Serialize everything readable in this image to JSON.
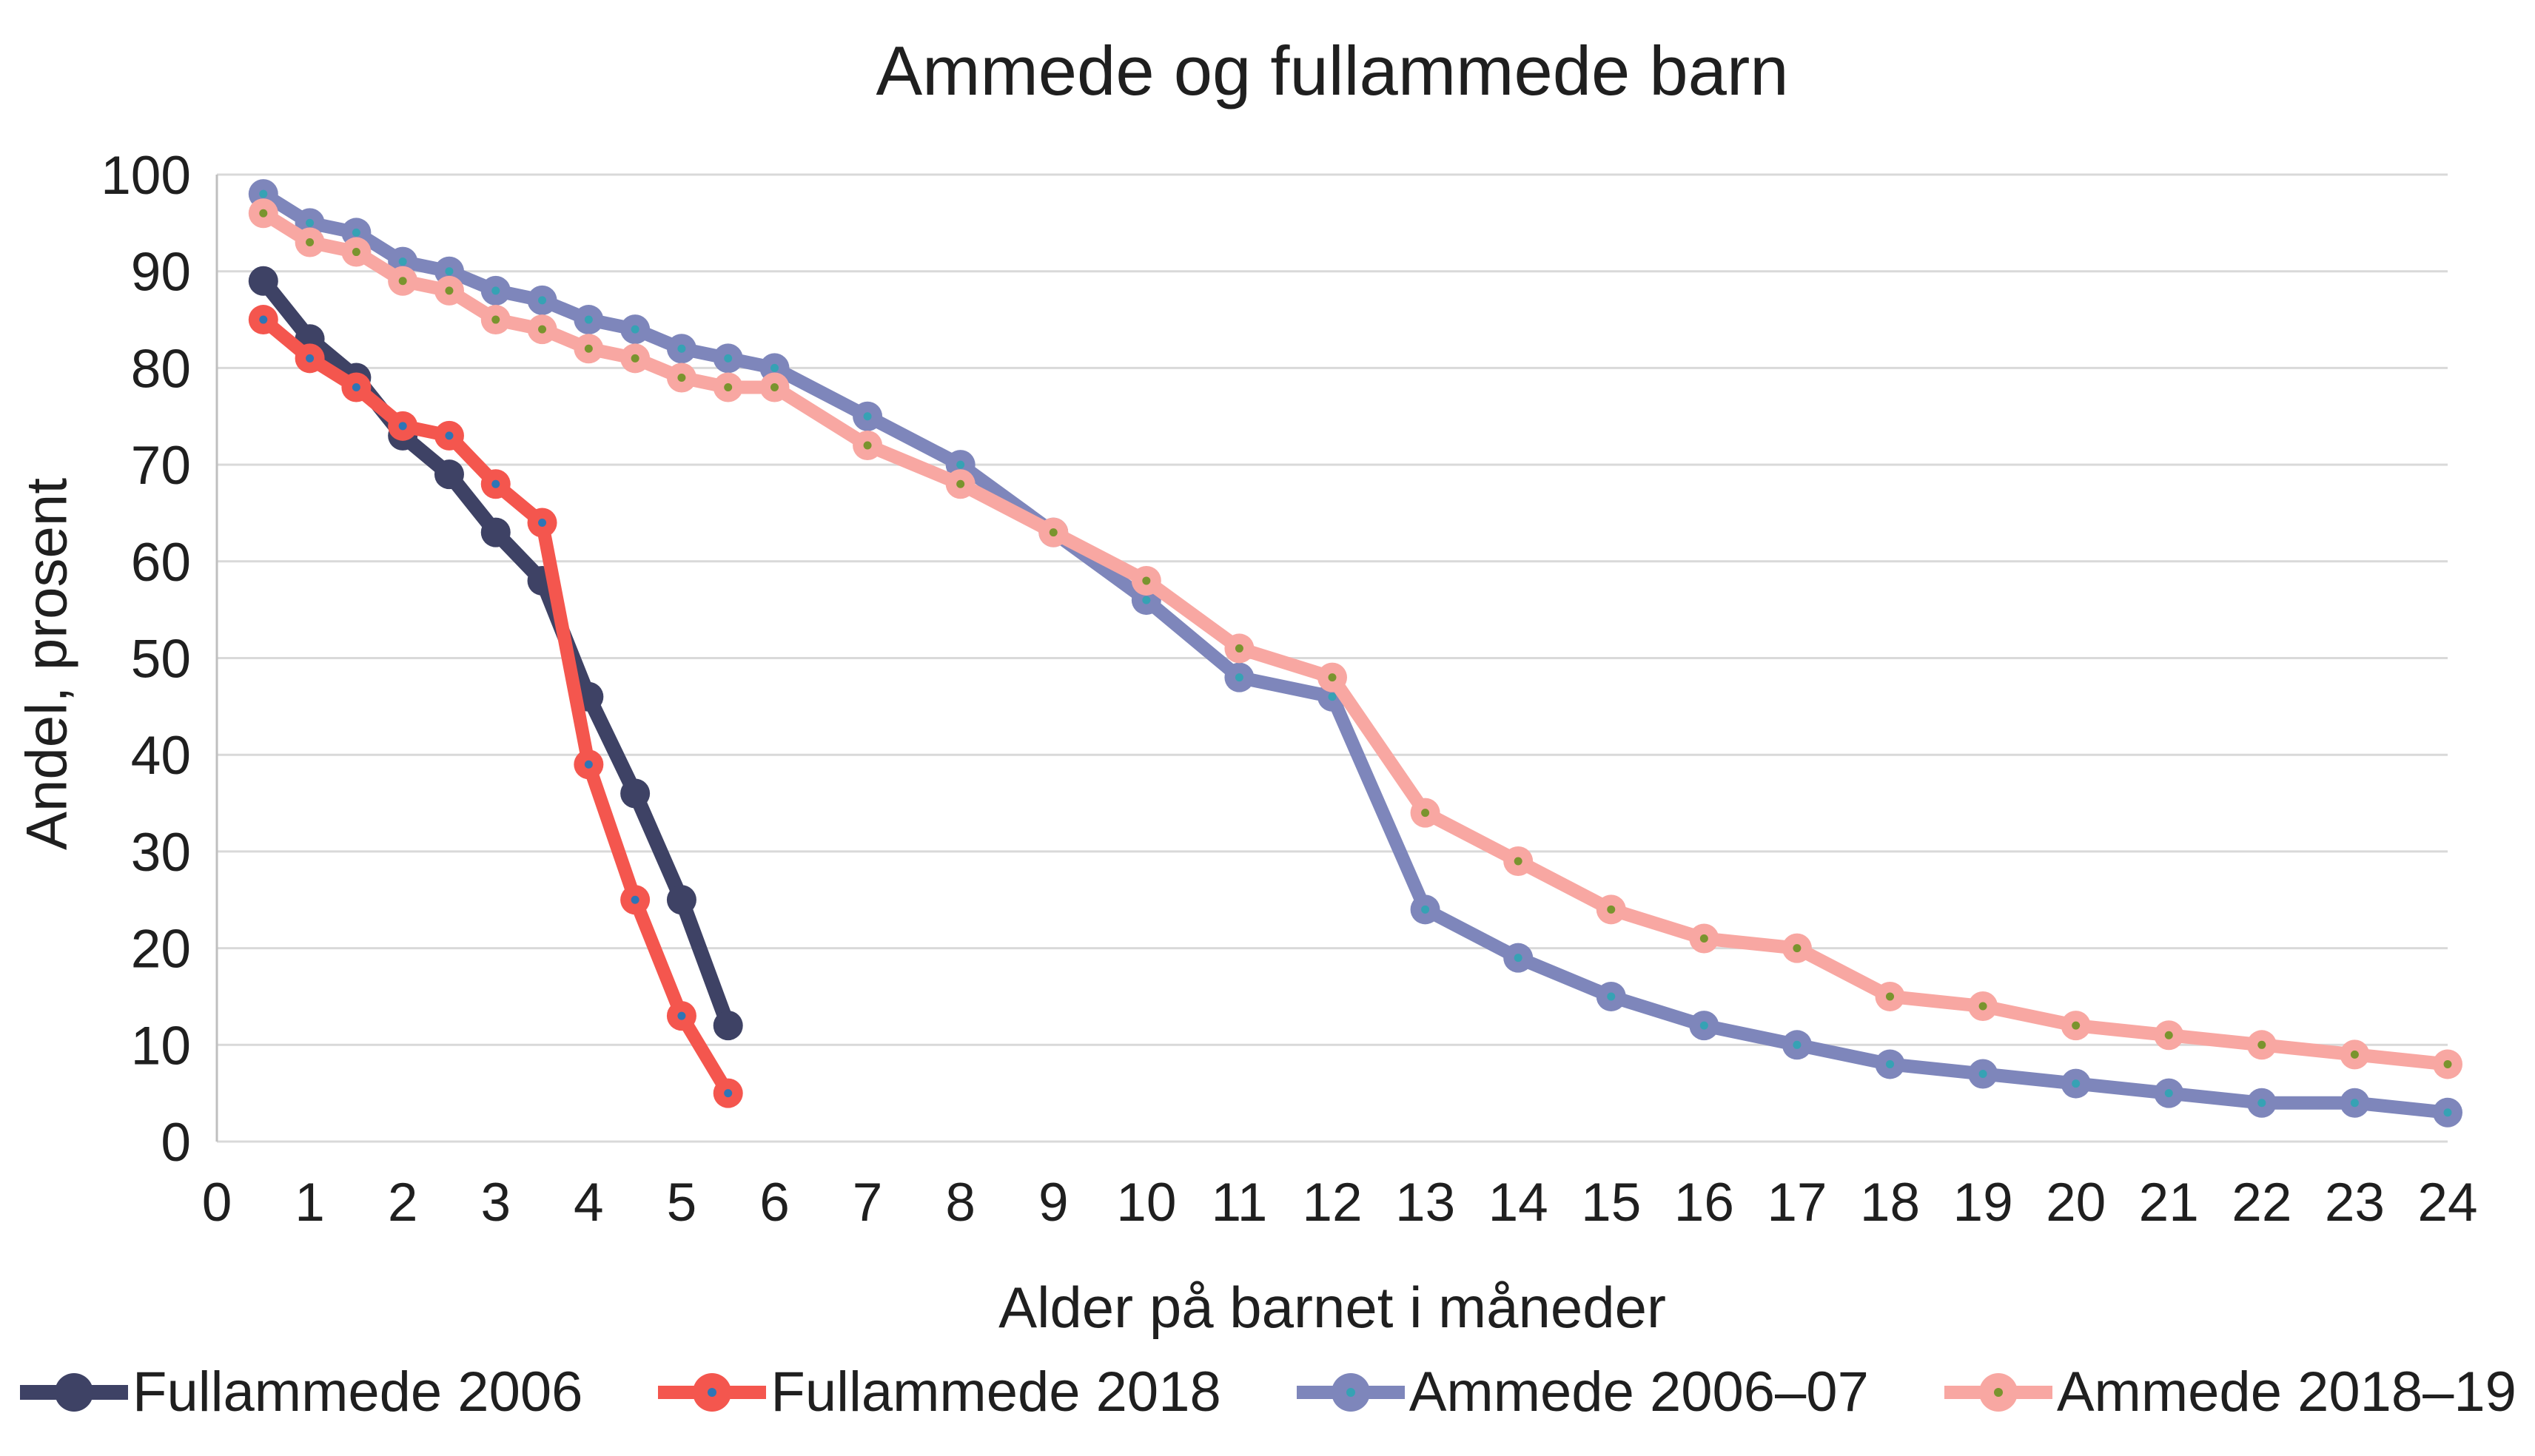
{
  "title": "Ammede og fullammede barn",
  "y_axis": {
    "label": "Andel, prosent",
    "ticks": [
      0,
      10,
      20,
      30,
      40,
      50,
      60,
      70,
      80,
      90,
      100
    ],
    "min": 0,
    "max": 100
  },
  "x_axis": {
    "label": "Alder på barnet i måneder",
    "ticks": [
      0,
      1,
      2,
      3,
      4,
      5,
      6,
      7,
      8,
      9,
      10,
      11,
      12,
      13,
      14,
      15,
      16,
      17,
      18,
      19,
      20,
      21,
      22,
      23,
      24
    ],
    "min": 0,
    "max": 24
  },
  "colors": {
    "gridline": "#d9d9d9",
    "axis_line": "#bfbfbf",
    "text": "#1f1f1f",
    "background": "#ffffff"
  },
  "chart_data": {
    "type": "line",
    "title": "Ammede og fullammede barn",
    "xlabel": "Alder på barnet i måneder",
    "ylabel": "Andel, prosent",
    "xlim": [
      0,
      24
    ],
    "ylim": [
      0,
      100
    ],
    "grid": "horizontal",
    "legend_position": "bottom",
    "series": [
      {
        "name": "Fullammede 2006",
        "color": "#3e4265",
        "center_dot_color": null,
        "line_width": 20,
        "x": [
          0.5,
          1,
          1.5,
          2,
          2.5,
          3,
          3.5,
          4,
          4.5,
          5,
          5.5
        ],
        "values": [
          89,
          83,
          79,
          73,
          69,
          63,
          58,
          46,
          36,
          25,
          12
        ]
      },
      {
        "name": "Fullammede 2018",
        "color": "#f4564e",
        "center_dot_color": "#2e75b6",
        "line_width": 18,
        "x": [
          0.5,
          1,
          1.5,
          2,
          2.5,
          3,
          3.5,
          4,
          4.5,
          5,
          5.5
        ],
        "values": [
          85,
          81,
          78,
          74,
          73,
          68,
          64,
          39,
          25,
          13,
          5
        ]
      },
      {
        "name": "Ammede 2006–07",
        "color": "#7e86bb",
        "center_dot_color": "#36a2b4",
        "line_width": 18,
        "x": [
          0.5,
          1,
          1.5,
          2,
          2.5,
          3,
          3.5,
          4,
          4.5,
          5,
          5.5,
          6,
          7,
          8,
          9,
          10,
          11,
          12,
          13,
          14,
          15,
          16,
          17,
          18,
          19,
          20,
          21,
          22,
          23,
          24
        ],
        "values": [
          98,
          95,
          94,
          91,
          90,
          88,
          87,
          85,
          84,
          82,
          81,
          80,
          75,
          70,
          63,
          56,
          48,
          46,
          24,
          19,
          15,
          12,
          10,
          8,
          7,
          6,
          5,
          4,
          4,
          3
        ]
      },
      {
        "name": "Ammede 2018–19",
        "color": "#f8a7a2",
        "center_dot_color": "#7a942e",
        "line_width": 18,
        "x": [
          0.5,
          1,
          1.5,
          2,
          2.5,
          3,
          3.5,
          4,
          4.5,
          5,
          5.5,
          6,
          7,
          8,
          9,
          10,
          11,
          12,
          13,
          14,
          15,
          16,
          17,
          18,
          19,
          20,
          21,
          22,
          23,
          24
        ],
        "values": [
          96,
          93,
          92,
          89,
          88,
          85,
          84,
          82,
          81,
          79,
          78,
          78,
          72,
          68,
          63,
          58,
          51,
          48,
          34,
          29,
          24,
          21,
          20,
          15,
          14,
          12,
          11,
          10,
          9,
          8
        ]
      }
    ]
  }
}
